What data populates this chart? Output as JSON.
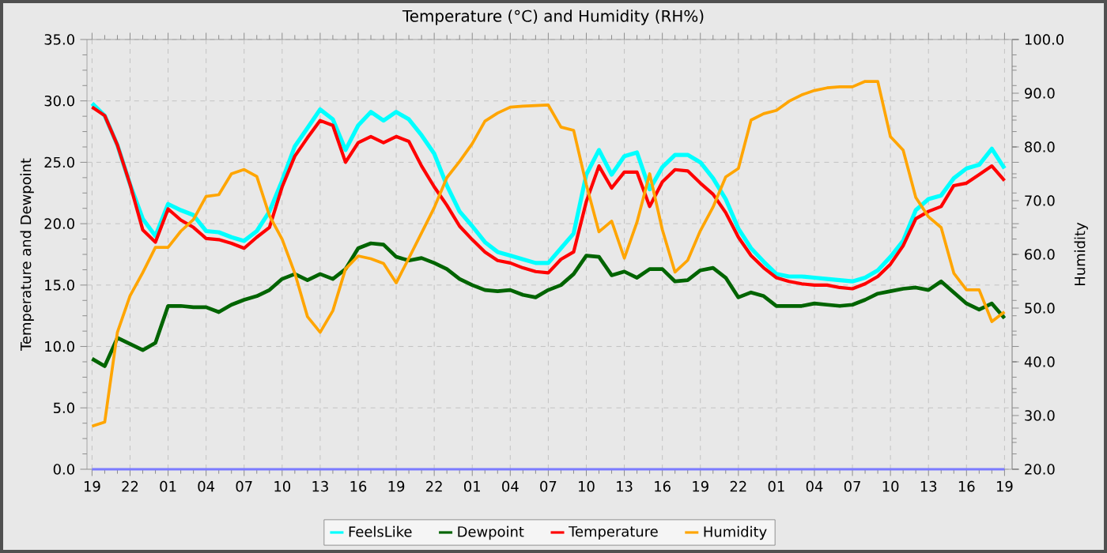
{
  "chart_data": {
    "type": "line",
    "title": "Temperature (°C) and Humidity (RH%)",
    "ylabel": "Temperature and Dewpoint",
    "y2label": "Humidity",
    "categories": [
      "19",
      null,
      null,
      "22",
      null,
      null,
      "01",
      null,
      null,
      "04",
      null,
      null,
      "07",
      null,
      null,
      "10",
      null,
      null,
      "13",
      null,
      null,
      "16",
      null,
      null,
      "19",
      null,
      null,
      "22",
      null,
      null,
      "01",
      null,
      null,
      "04",
      null,
      null,
      "07",
      null,
      null,
      "10",
      null,
      null,
      "13",
      null,
      null,
      "16",
      null,
      null,
      "19",
      null,
      null,
      "22",
      null,
      null,
      "01",
      null,
      null,
      "04",
      null,
      null,
      "07",
      null,
      null,
      "10",
      null,
      null,
      "13",
      null,
      null,
      "16",
      null,
      null,
      "19"
    ],
    "ylim": [
      0,
      35
    ],
    "y2lim": [
      20,
      100
    ],
    "yticks": [
      {
        "value": 0,
        "label": "0.0"
      },
      {
        "value": 5,
        "label": "5.0"
      },
      {
        "value": 10,
        "label": "10.0"
      },
      {
        "value": 15,
        "label": "15.0"
      },
      {
        "value": 20,
        "label": "20.0"
      },
      {
        "value": 25,
        "label": "25.0"
      },
      {
        "value": 30,
        "label": "30.0"
      },
      {
        "value": 35,
        "label": "35.0"
      }
    ],
    "y2ticks": [
      {
        "value": 20,
        "label": "20.0"
      },
      {
        "value": 30,
        "label": "30.0"
      },
      {
        "value": 40,
        "label": "40.0"
      },
      {
        "value": 50,
        "label": "50.0"
      },
      {
        "value": 60,
        "label": "60.0"
      },
      {
        "value": 70,
        "label": "70.0"
      },
      {
        "value": 80,
        "label": "80.0"
      },
      {
        "value": 90,
        "label": "90.0"
      },
      {
        "value": 100,
        "label": "100.0"
      }
    ],
    "grid": true,
    "legend": "bottom",
    "marker": "none",
    "line_style": "solid",
    "series": [
      {
        "name": "FeelsLike",
        "color": "#00ffff",
        "values": [
          29.8,
          28.8,
          26.4,
          23.2,
          20.4,
          19.0,
          21.6,
          21.1,
          20.7,
          19.4,
          19.3,
          18.9,
          18.6,
          19.4,
          21.0,
          23.5,
          26.3,
          27.8,
          29.3,
          28.5,
          26.0,
          28.0,
          29.1,
          28.4,
          29.1,
          28.5,
          27.2,
          25.7,
          23.1,
          21.0,
          19.8,
          18.5,
          17.7,
          17.4,
          17.1,
          16.8,
          16.8,
          18.0,
          19.2,
          24.0,
          26.0,
          24.0,
          25.5,
          25.8,
          22.8,
          24.6,
          25.6,
          25.6,
          25.0,
          23.7,
          22.0,
          19.6,
          18.0,
          16.9,
          15.9,
          15.7,
          15.7,
          15.6,
          15.5,
          15.4,
          15.3,
          15.6,
          16.2,
          17.3,
          18.6,
          21.1,
          22.0,
          22.3,
          23.7,
          24.5,
          24.8,
          26.1,
          24.5
        ]
      },
      {
        "name": "Dewpoint",
        "color": "#006400",
        "values": [
          9.0,
          8.4,
          10.7,
          10.2,
          9.7,
          10.3,
          13.3,
          13.3,
          13.2,
          13.2,
          12.8,
          13.4,
          13.8,
          14.1,
          14.6,
          15.5,
          15.9,
          15.4,
          15.9,
          15.5,
          16.3,
          18.0,
          18.4,
          18.3,
          17.3,
          17.0,
          17.2,
          16.8,
          16.3,
          15.5,
          15.0,
          14.6,
          14.5,
          14.6,
          14.2,
          14.0,
          14.6,
          15.0,
          15.9,
          17.4,
          17.3,
          15.8,
          16.1,
          15.6,
          16.3,
          16.3,
          15.3,
          15.4,
          16.2,
          16.4,
          15.6,
          14.0,
          14.4,
          14.1,
          13.3,
          13.3,
          13.3,
          13.5,
          13.4,
          13.3,
          13.4,
          13.8,
          14.3,
          14.5,
          14.7,
          14.8,
          14.6,
          15.3,
          14.4,
          13.5,
          13.0,
          13.5,
          12.3
        ]
      },
      {
        "name": "Temperature",
        "color": "#ff0000",
        "values": [
          29.5,
          28.8,
          26.4,
          23.2,
          19.5,
          18.5,
          21.2,
          20.3,
          19.7,
          18.8,
          18.7,
          18.4,
          18.0,
          18.9,
          19.7,
          23.0,
          25.5,
          27.0,
          28.4,
          28.0,
          25.0,
          26.6,
          27.1,
          26.6,
          27.1,
          26.7,
          24.7,
          23.0,
          21.5,
          19.8,
          18.7,
          17.7,
          17.0,
          16.8,
          16.4,
          16.1,
          16.0,
          17.1,
          17.7,
          21.8,
          24.7,
          22.9,
          24.2,
          24.2,
          21.4,
          23.4,
          24.4,
          24.3,
          23.3,
          22.4,
          20.9,
          18.9,
          17.4,
          16.4,
          15.6,
          15.3,
          15.1,
          15.0,
          15.0,
          14.8,
          14.7,
          15.1,
          15.7,
          16.7,
          18.2,
          20.4,
          21.0,
          21.4,
          23.1,
          23.3,
          24.0,
          24.7,
          23.5
        ]
      },
      {
        "name": "Humidity",
        "color": "#ffa500",
        "axis": "y2",
        "values": [
          28.0,
          28.8,
          45.5,
          52.3,
          56.6,
          61.3,
          61.3,
          64.3,
          66.5,
          70.8,
          71.1,
          75.0,
          75.8,
          74.5,
          67.2,
          62.8,
          56.5,
          48.4,
          45.5,
          49.5,
          57.3,
          59.7,
          59.2,
          58.3,
          54.7,
          59.3,
          64.0,
          68.7,
          74.3,
          77.3,
          80.6,
          84.8,
          86.3,
          87.4,
          87.6,
          87.7,
          87.8,
          83.7,
          83.1,
          73.0,
          64.2,
          66.2,
          59.3,
          66.0,
          75.0,
          64.6,
          56.7,
          58.9,
          64.4,
          68.8,
          74.4,
          76.0,
          85.0,
          86.2,
          86.8,
          88.5,
          89.7,
          90.5,
          91.0,
          91.2,
          91.2,
          92.2,
          92.2,
          81.9,
          79.4,
          70.6,
          67.0,
          65.0,
          56.5,
          53.4,
          53.4,
          47.5,
          49.3
        ]
      },
      {
        "color": "#7b7bff",
        "values": [
          0,
          0,
          0,
          0,
          0,
          0,
          0,
          0,
          0,
          0,
          0,
          0,
          0,
          0,
          0,
          0,
          0,
          0,
          0,
          0,
          0,
          0,
          0,
          0,
          0,
          0,
          0,
          0,
          0,
          0,
          0,
          0,
          0,
          0,
          0,
          0,
          0,
          0,
          0,
          0,
          0,
          0,
          0,
          0,
          0,
          0,
          0,
          0,
          0,
          0,
          0,
          0,
          0,
          0,
          0,
          0,
          0,
          0,
          0,
          0,
          0,
          0,
          0,
          0,
          0,
          0,
          0,
          0,
          0,
          0,
          0,
          0,
          0
        ]
      }
    ]
  }
}
